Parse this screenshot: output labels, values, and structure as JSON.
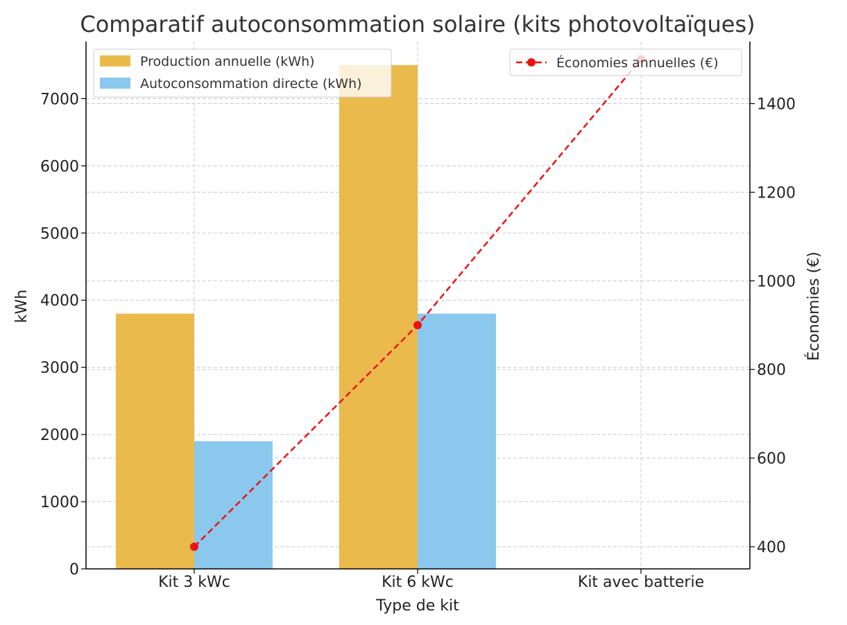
{
  "chart_data": {
    "type": "bar",
    "title": "Comparatif autoconsommation solaire (kits photovoltaïques)",
    "xlabel": "Type de kit",
    "ylabel": "kWh",
    "y2label": "Économies (€)",
    "categories": [
      "Kit 3 kWc",
      "Kit 6 kWc",
      "Kit avec batterie"
    ],
    "series": [
      {
        "name": "Production annuelle (kWh)",
        "type": "bar",
        "axis": "left",
        "color": "#EBBA4C",
        "values": [
          3800,
          7500,
          null
        ]
      },
      {
        "name": "Autoconsommation directe (kWh)",
        "type": "bar",
        "axis": "left",
        "color": "#8AC8EE",
        "values": [
          1900,
          3800,
          null
        ]
      },
      {
        "name": "Économies annuelles (€)",
        "type": "line",
        "axis": "right",
        "style": "dashed",
        "marker": "circle",
        "color": "#EE1111",
        "values": [
          400,
          900,
          1500
        ]
      }
    ],
    "ylim": [
      0,
      7850
    ],
    "y2lim": [
      350,
      1540
    ],
    "yticks": [
      0,
      1000,
      2000,
      3000,
      4000,
      5000,
      6000,
      7000
    ],
    "y2ticks": [
      400,
      600,
      800,
      1000,
      1200,
      1400
    ],
    "grid": true,
    "legend_bars": "top-left",
    "legend_line": "top-right"
  }
}
